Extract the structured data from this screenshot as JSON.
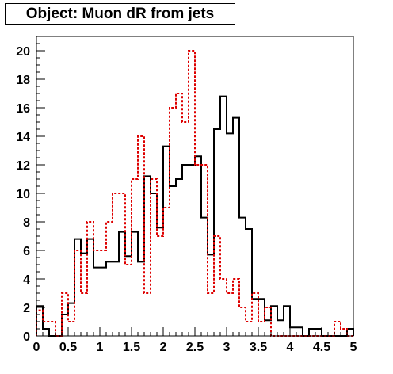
{
  "chart_data": {
    "type": "histogram",
    "title": "Object: Muon dR from jets",
    "xlabel": "",
    "ylabel": "",
    "xlim": [
      0,
      5
    ],
    "ylim": [
      0,
      21
    ],
    "grid": false,
    "bin_edges_start": 0,
    "bin_width": 0.1,
    "x_ticks": [
      {
        "value": 0,
        "label": "0"
      },
      {
        "value": 0.5,
        "label": "0.5"
      },
      {
        "value": 1,
        "label": "1"
      },
      {
        "value": 1.5,
        "label": "1.5"
      },
      {
        "value": 2,
        "label": "2"
      },
      {
        "value": 2.5,
        "label": "2.5"
      },
      {
        "value": 3,
        "label": "3"
      },
      {
        "value": 3.5,
        "label": "3.5"
      },
      {
        "value": 4,
        "label": "4"
      },
      {
        "value": 4.5,
        "label": "4.5"
      },
      {
        "value": 5,
        "label": "5"
      }
    ],
    "y_ticks": [
      {
        "value": 0,
        "label": "0"
      },
      {
        "value": 2,
        "label": "2"
      },
      {
        "value": 4,
        "label": "4"
      },
      {
        "value": 6,
        "label": "6"
      },
      {
        "value": 8,
        "label": "8"
      },
      {
        "value": 10,
        "label": "10"
      },
      {
        "value": 12,
        "label": "12"
      },
      {
        "value": 14,
        "label": "14"
      },
      {
        "value": 16,
        "label": "16"
      },
      {
        "value": 18,
        "label": "18"
      },
      {
        "value": 20,
        "label": "20"
      }
    ],
    "series": [
      {
        "style": "solid",
        "color": "#000000",
        "values": [
          2.1,
          0.5,
          0,
          0,
          1.5,
          2.3,
          6.8,
          5.8,
          6.8,
          4.8,
          4.8,
          5.2,
          5.2,
          7.3,
          5.6,
          7.3,
          5.2,
          11.2,
          10,
          7.6,
          13.3,
          10.5,
          11,
          12,
          12,
          12.6,
          8.3,
          5.7,
          14.5,
          16.8,
          14.2,
          15.3,
          8.3,
          7.5,
          2.6,
          2.6,
          1.1,
          2.1,
          1.1,
          2.1,
          0.6,
          0.6,
          0,
          0.5,
          0.5,
          0,
          0,
          0,
          0,
          0.5
        ]
      },
      {
        "style": "dashed",
        "color": "#dd0000",
        "values": [
          1.8,
          1.0,
          1.0,
          0,
          3.0,
          1.0,
          6.0,
          3.0,
          8.0,
          6.0,
          6.0,
          8.0,
          10.0,
          10.0,
          5.0,
          11.0,
          14.0,
          3.0,
          11.0,
          7.0,
          9.0,
          16.0,
          17.0,
          15.0,
          20.0,
          12.0,
          12.0,
          3.0,
          7.0,
          4.0,
          3.0,
          4.0,
          2.0,
          1.0,
          3.0,
          1.0,
          2.0,
          0,
          0,
          0,
          0,
          0,
          0,
          0,
          0,
          0,
          0,
          1.0,
          0.5,
          0
        ]
      }
    ]
  }
}
